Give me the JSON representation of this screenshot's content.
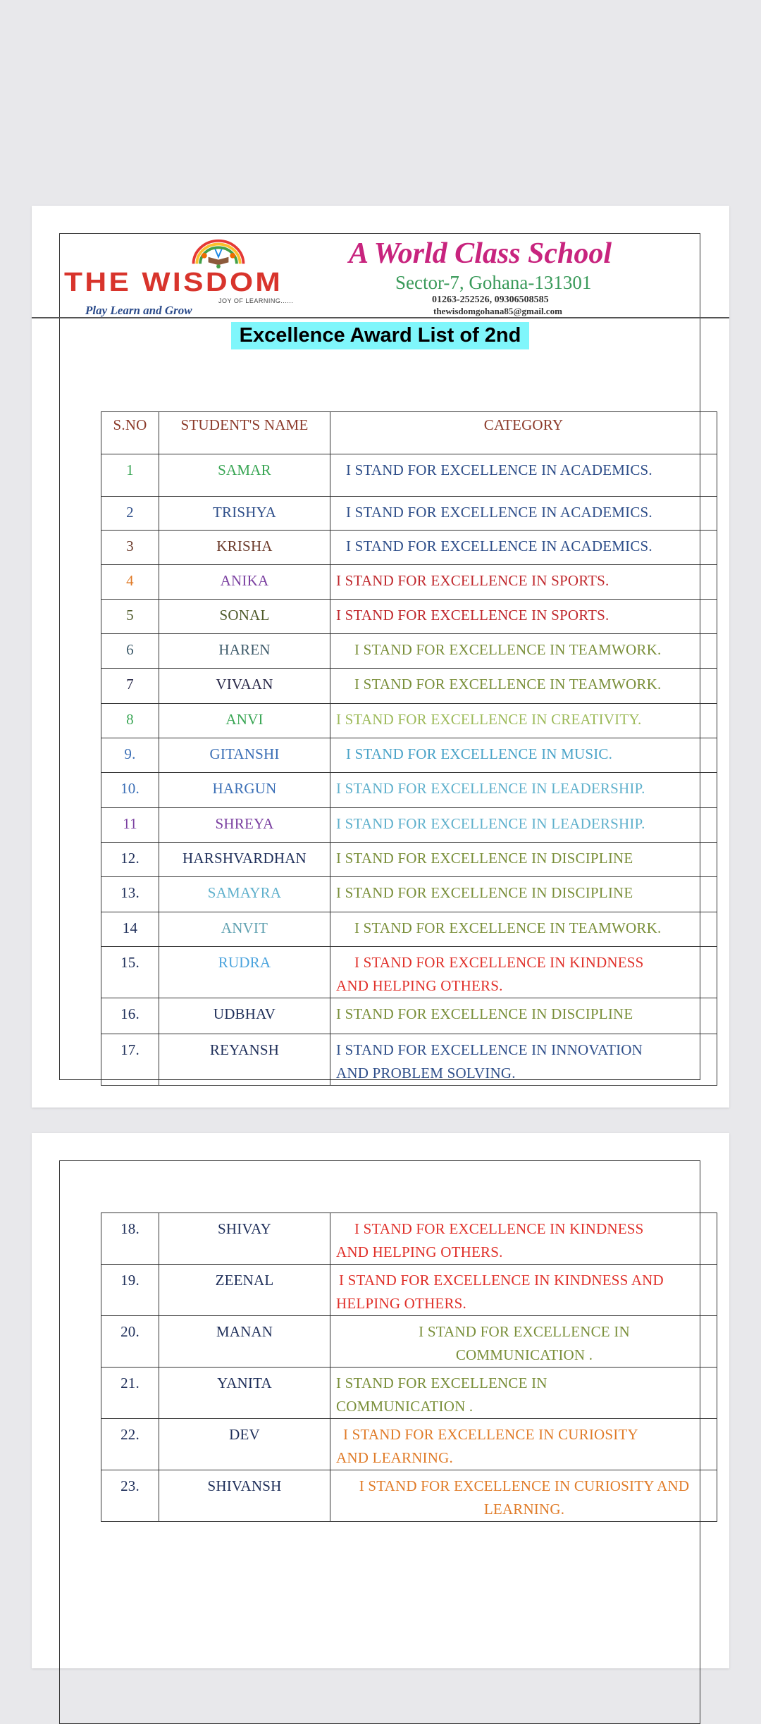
{
  "header": {
    "brand": "THE WISDOM",
    "brand_sub": "JOY OF LEARNING......",
    "tagline": "Play Learn and Grow",
    "motto": "A World Class School",
    "address": "Sector-7, Gohana-131301",
    "phone": "01263-252526, 09306508585",
    "email": "thewisdomgohana85@gmail.com",
    "logo_icon": "rainbow-book-children-logo"
  },
  "title": "Excellence Award List of 2nd",
  "title_highlight": "#7ff6fb",
  "table": {
    "columns": [
      "S.NO",
      "STUDENT'S NAME",
      "CATEGORY"
    ],
    "rows": [
      {
        "sno": "1",
        "name": "SAMAR",
        "category": [
          "I STAND FOR  EXCELLENCE IN ACADEMICS."
        ],
        "sno_color": "#3aa655",
        "name_color": "#3aa655",
        "cat_color": "#2f4f8a"
      },
      {
        "sno": "2",
        "name": "TRISHYA",
        "category": [
          "I STAND FOR  EXCELLENCE IN ACADEMICS."
        ],
        "sno_color": "#2f4f8a",
        "name_color": "#2f4f8a",
        "cat_color": "#2f4f8a"
      },
      {
        "sno": "3",
        "name": "KRISHA",
        "category": [
          "I STAND FOR  EXCELLENCE IN ACADEMICS."
        ],
        "sno_color": "#6b3a2a",
        "name_color": "#6b3a2a",
        "cat_color": "#2f4f8a"
      },
      {
        "sno": "4",
        "name": "ANIKA",
        "category": [
          "I STAND FOR EXCELLENCE IN SPORTS."
        ],
        "sno_color": "#e07b28",
        "name_color": "#7a3fa0",
        "cat_color": "#c0282d"
      },
      {
        "sno": "5",
        "name": "SONAL",
        "category": [
          "I STAND FOR EXCELLENCE IN SPORTS."
        ],
        "sno_color": "#4f5b2b",
        "name_color": "#4f5b2b",
        "cat_color": "#c0282d"
      },
      {
        "sno": "6",
        "name": "HAREN",
        "category": [
          "I STAND FOR EXCELLENCE IN TEAMWORK."
        ],
        "sno_color": "#3d5a6a",
        "name_color": "#3d5a6a",
        "cat_color": "#7a8f3a"
      },
      {
        "sno": "7",
        "name": "VIVAAN",
        "category": [
          "I STAND FOR EXCELLENCE IN TEAMWORK."
        ],
        "sno_color": "#2a2a4a",
        "name_color": "#2a2a4a",
        "cat_color": "#7a8f3a"
      },
      {
        "sno": "8",
        "name": "ANVI",
        "category": [
          "I STAND FOR EXCELLENCE IN CREATIVITY."
        ],
        "sno_color": "#3aa655",
        "name_color": "#3aa655",
        "cat_color": "#9dba5a"
      },
      {
        "sno": "9.",
        "name": "GITANSHI",
        "category": [
          "I STAND FOR EXCELLENCE IN MUSIC."
        ],
        "sno_color": "#3b6fb6",
        "name_color": "#3b6fb6",
        "cat_color": "#4aa3c8"
      },
      {
        "sno": "10.",
        "name": "HARGUN",
        "category": [
          "I STAND FOR EXCELLENCE IN LEADERSHIP."
        ],
        "sno_color": "#3b6fb6",
        "name_color": "#3b6fb6",
        "cat_color": "#5fb0cc"
      },
      {
        "sno": "11",
        "name": "SHREYA",
        "category": [
          "I STAND FOR EXCELLENCE IN LEADERSHIP."
        ],
        "sno_color": "#7a3fa0",
        "name_color": "#7a3fa0",
        "cat_color": "#5fb0cc"
      },
      {
        "sno": "12.",
        "name": "HARSHVARDHAN",
        "category": [
          "I STAND FOR EXCELLENCE IN DISCIPLINE"
        ],
        "sno_color": "#1f2f5a",
        "name_color": "#1f2f5a",
        "cat_color": "#7a8f3a"
      },
      {
        "sno": "13.",
        "name": "SAMAYRA",
        "category": [
          "I STAND FOR EXCELLENCE IN DISCIPLINE"
        ],
        "sno_color": "#1f2f5a",
        "name_color": "#5fb0cc",
        "cat_color": "#7a8f3a"
      },
      {
        "sno": "14",
        "name": "ANVIT",
        "category": [
          "I STAND FOR EXCELLENCE IN TEAMWORK."
        ],
        "sno_color": "#1f2f5a",
        "name_color": "#5fa0b0",
        "cat_color": "#7a8f3a"
      },
      {
        "sno": "15.",
        "name": "RUDRA",
        "category": [
          "I STAND FOR EXCELLENCE IN KINDNESS",
          "AND HELPING OTHERS."
        ],
        "sno_color": "#1f2f5a",
        "name_color": "#4aa3dd",
        "cat_color": "#e0302a"
      },
      {
        "sno": "16.",
        "name": "UDBHAV",
        "category": [
          "I STAND FOR EXCELLENCE IN DISCIPLINE"
        ],
        "sno_color": "#1f2f5a",
        "name_color": "#1f2f5a",
        "cat_color": "#7a8f3a"
      },
      {
        "sno": "17.",
        "name": "REYANSH",
        "category": [
          "I STAND FOR  EXCELLENCE IN INNOVATION",
          "AND PROBLEM SOLVING."
        ],
        "sno_color": "#1f2f5a",
        "name_color": "#1f2f5a",
        "cat_color": "#2f4f8a"
      }
    ],
    "rows_page2": [
      {
        "sno": "18.",
        "name": "SHIVAY",
        "category": [
          "I STAND FOR EXCELLENCE IN KINDNESS",
          "AND HELPING OTHERS."
        ],
        "sno_color": "#1f2f5a",
        "name_color": "#1f2f5a",
        "cat_color": "#e0302a"
      },
      {
        "sno": "19.",
        "name": "ZEENAL",
        "category": [
          "I STAND FOR EXCELLENCE IN KINDNESS AND",
          "HELPING OTHERS."
        ],
        "sno_color": "#1f2f5a",
        "name_color": "#1f2f5a",
        "cat_color": "#e0302a"
      },
      {
        "sno": "20.",
        "name": "MANAN",
        "category": [
          "I STAND FOR EXCELLENCE IN",
          "COMMUNICATION ."
        ],
        "sno_color": "#1f2f5a",
        "name_color": "#1f2f5a",
        "cat_color": "#7a8f3a",
        "align": "center"
      },
      {
        "sno": "21.",
        "name": "YANITA",
        "category": [
          "I STAND FOR EXCELLENCE IN",
          "COMMUNICATION ."
        ],
        "sno_color": "#1f2f5a",
        "name_color": "#1f2f5a",
        "cat_color": "#7a8f3a"
      },
      {
        "sno": "22.",
        "name": "DEV",
        "category": [
          "I STAND FOR EXCELLENCE IN CURIOSITY",
          "AND LEARNING."
        ],
        "sno_color": "#1f2f5a",
        "name_color": "#1f2f5a",
        "cat_color": "#e07b28"
      },
      {
        "sno": "23.",
        "name": "SHIVANSH",
        "category": [
          "I STAND FOR EXCELLENCE IN CURIOSITY AND",
          "LEARNING."
        ],
        "sno_color": "#1f2f5a",
        "name_color": "#1f2f5a",
        "cat_color": "#e07b28",
        "align": "center"
      }
    ]
  }
}
